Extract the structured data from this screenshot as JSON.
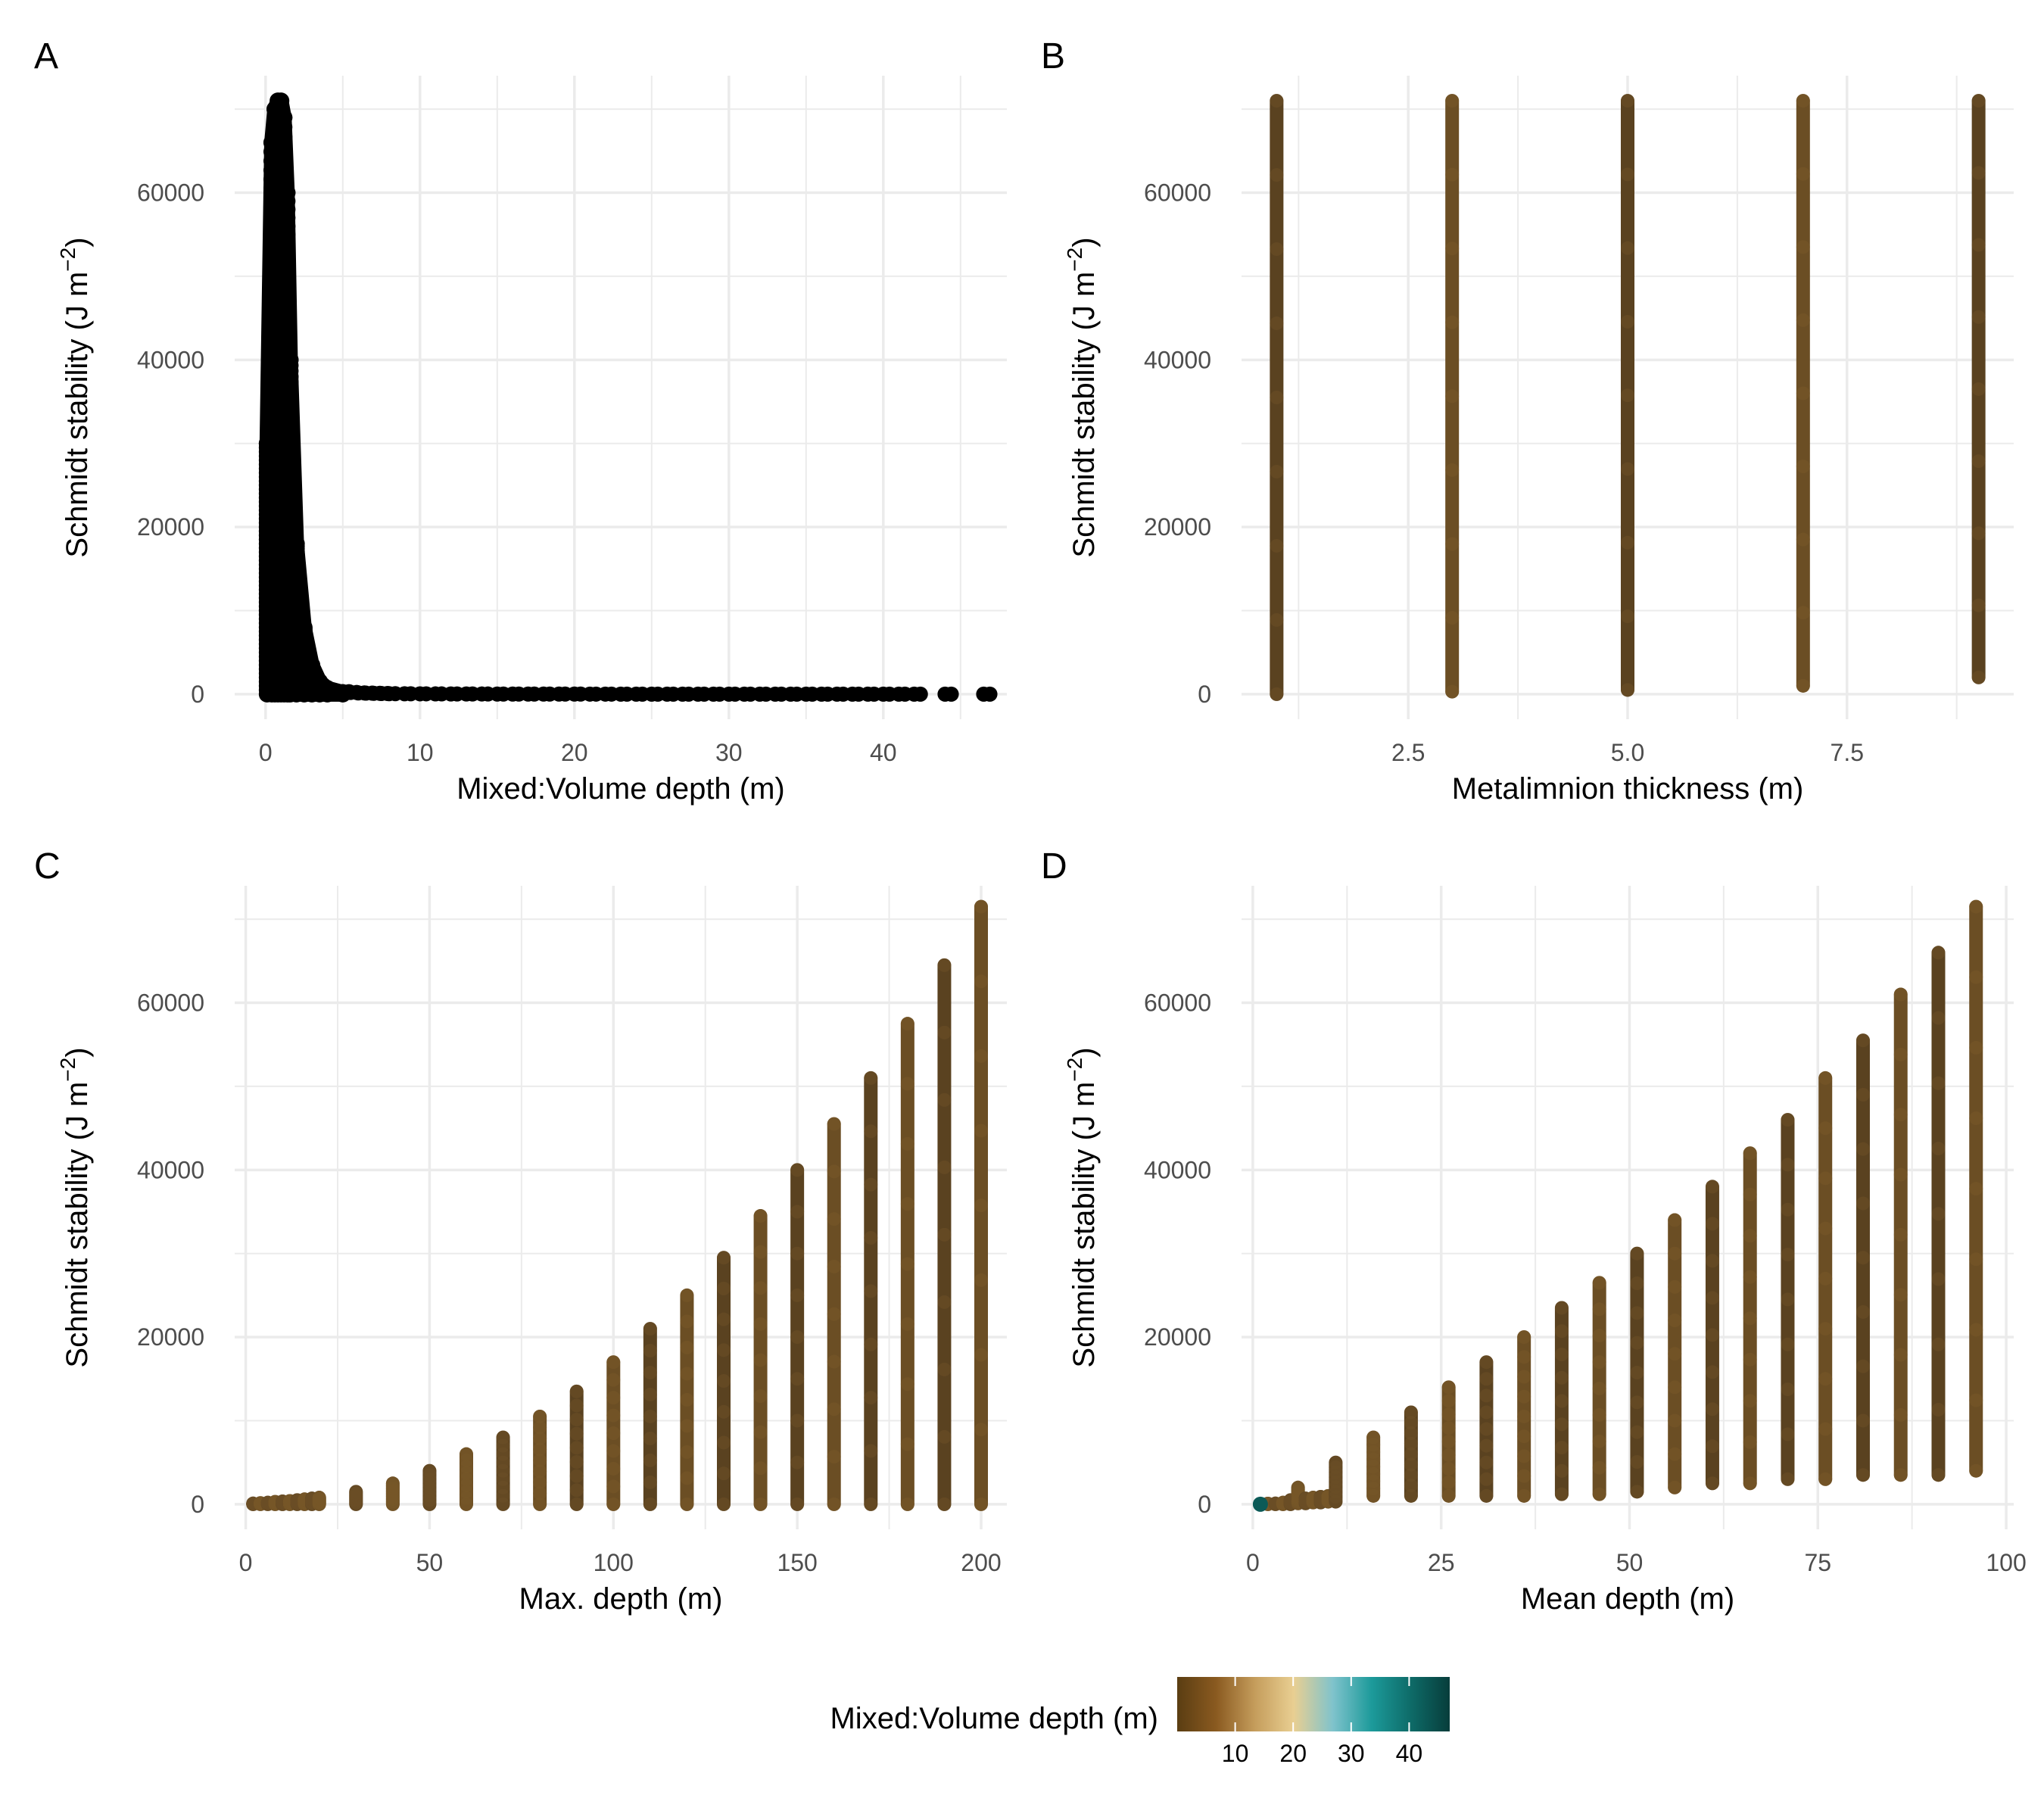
{
  "chart_data": [
    {
      "type": "scatter",
      "panel_label": "A",
      "xlabel": "Mixed:Volume depth (m)",
      "ylabel": "Schmidt stability (J m",
      "ylabel_sup": "−2",
      "ylabel_close": ")",
      "xlim": [
        -2,
        48
      ],
      "ylim": [
        -3000,
        74000
      ],
      "xticks": [
        0,
        10,
        20,
        30,
        40
      ],
      "xtick_labels": [
        "0",
        "10",
        "20",
        "30",
        "40"
      ],
      "yticks": [
        0,
        20000,
        40000,
        60000
      ],
      "ytick_labels": [
        "0",
        "20000",
        "40000",
        "60000"
      ],
      "grid": true,
      "point_color": "#000000",
      "series": [
        {
          "kind": "density_region",
          "x": [
            0.1,
            0.4,
            0.6,
            0.8,
            1.0,
            1.2,
            1.4,
            1.6,
            2.0,
            2.5,
            3.0,
            3.5,
            4.0,
            5.0
          ],
          "y_max": [
            30000,
            66000,
            70000,
            71000,
            71000,
            69000,
            60000,
            40000,
            18000,
            8000,
            3500,
            1500,
            700,
            200
          ]
        },
        {
          "kind": "tail_points",
          "x": [
            5,
            5.5,
            6,
            6.5,
            7,
            7.5,
            8,
            9,
            10,
            11,
            12,
            13,
            14,
            15,
            16,
            17,
            18,
            19,
            20,
            21,
            22,
            23,
            24,
            25,
            26,
            27,
            28,
            29,
            30,
            31,
            32,
            33,
            34,
            35,
            36,
            37,
            38,
            39,
            40,
            41,
            42,
            44,
            46.5
          ],
          "y": [
            300,
            200,
            150,
            120,
            100,
            80,
            60,
            50,
            40,
            30,
            25,
            20,
            18,
            15,
            12,
            10,
            10,
            8,
            8,
            6,
            6,
            5,
            5,
            4,
            4,
            3,
            3,
            3,
            2,
            2,
            2,
            2,
            1,
            1,
            1,
            1,
            1,
            1,
            1,
            1,
            1,
            1,
            1
          ]
        }
      ]
    },
    {
      "type": "scatter",
      "panel_label": "B",
      "xlabel": "Metalimnion thickness (m)",
      "ylabel": "Schmidt stability (J m",
      "ylabel_sup": "−2",
      "ylabel_close": ")",
      "xlim": [
        0.6,
        9.4
      ],
      "ylim": [
        -3000,
        74000
      ],
      "xticks": [
        2.5,
        5.0,
        7.5
      ],
      "xtick_labels": [
        "2.5",
        "5.0",
        "7.5"
      ],
      "yticks": [
        0,
        20000,
        40000,
        60000
      ],
      "ytick_labels": [
        "0",
        "20000",
        "40000",
        "60000"
      ],
      "grid": true,
      "series": [
        {
          "kind": "column",
          "x": [
            1,
            3,
            5,
            7,
            9
          ],
          "y_min": [
            0,
            300,
            500,
            1000,
            2000
          ],
          "y_max": [
            71000,
            71000,
            71000,
            71000,
            71000
          ]
        }
      ]
    },
    {
      "type": "scatter",
      "panel_label": "C",
      "xlabel": "Max. depth (m)",
      "ylabel": "Schmidt stability (J m",
      "ylabel_sup": "−2",
      "ylabel_close": ")",
      "xlim": [
        -3,
        207
      ],
      "ylim": [
        -3000,
        74000
      ],
      "xticks": [
        0,
        50,
        100,
        150,
        200
      ],
      "xtick_labels": [
        "0",
        "50",
        "100",
        "150",
        "200"
      ],
      "yticks": [
        0,
        20000,
        40000,
        60000
      ],
      "ytick_labels": [
        "0",
        "20000",
        "40000",
        "60000"
      ],
      "grid": true,
      "series": [
        {
          "kind": "column",
          "x": [
            2,
            4,
            6,
            8,
            10,
            12,
            14,
            16,
            18,
            20,
            30,
            40,
            50,
            60,
            70,
            80,
            90,
            100,
            110,
            120,
            130,
            140,
            150,
            160,
            170,
            180,
            190,
            200
          ],
          "y_min": [
            0,
            0,
            0,
            0,
            0,
            0,
            0,
            0,
            0,
            0,
            0,
            0,
            0,
            0,
            0,
            0,
            0,
            0,
            0,
            0,
            0,
            0,
            0,
            0,
            0,
            0,
            0,
            0
          ],
          "y_max": [
            100,
            150,
            200,
            300,
            350,
            400,
            500,
            600,
            700,
            800,
            1500,
            2500,
            4000,
            6000,
            8000,
            10500,
            13500,
            17000,
            21000,
            25000,
            29500,
            34500,
            40000,
            45500,
            51000,
            57500,
            64500,
            71500
          ]
        }
      ]
    },
    {
      "type": "scatter",
      "panel_label": "D",
      "xlabel": "Mean depth (m)",
      "ylabel": "Schmidt stability (J m",
      "ylabel_sup": "−2",
      "ylabel_close": ")",
      "xlim": [
        -1.5,
        101
      ],
      "ylim": [
        -3000,
        74000
      ],
      "xticks": [
        0,
        25,
        50,
        75,
        100
      ],
      "xtick_labels": [
        "0",
        "25",
        "50",
        "75",
        "100"
      ],
      "yticks": [
        0,
        20000,
        40000,
        60000
      ],
      "ytick_labels": [
        "0",
        "20000",
        "40000",
        "60000"
      ],
      "grid": true,
      "series": [
        {
          "kind": "column",
          "x": [
            1,
            2,
            3,
            4,
            5,
            6,
            7,
            8,
            9,
            10,
            11,
            16,
            21,
            26,
            31,
            36,
            41,
            46,
            51,
            56,
            61,
            66,
            71,
            76,
            81,
            86,
            91,
            96
          ],
          "y_min": [
            0,
            0,
            0,
            0,
            0,
            100,
            100,
            200,
            200,
            300,
            300,
            1000,
            1000,
            1000,
            1000,
            1000,
            1200,
            1200,
            1500,
            2000,
            2500,
            2500,
            3000,
            3000,
            3500,
            3500,
            3500,
            4000
          ],
          "y_max": [
            50,
            80,
            100,
            200,
            500,
            2000,
            700,
            800,
            900,
            1000,
            5000,
            8000,
            11000,
            14000,
            17000,
            20000,
            23500,
            26500,
            30000,
            34000,
            38000,
            42000,
            46000,
            51000,
            55500,
            61000,
            66000,
            71500
          ]
        },
        {
          "kind": "gaps_note",
          "text": ""
        }
      ]
    }
  ],
  "colors": {
    "point_dark": "#5a4220",
    "point_mid": "#6b4e24",
    "teal_point": "#0b5a57",
    "grid": "#ebebeb",
    "legend_stops": [
      "#5a3d12",
      "#8a5a20",
      "#c59d5c",
      "#e9cf92",
      "#7fc3cc",
      "#1c9a9a",
      "#0e6b68",
      "#073d3b"
    ]
  },
  "legend": {
    "title": "Mixed:Volume depth (m)",
    "ticks": [
      10,
      20,
      30,
      40
    ],
    "tick_labels": [
      "10",
      "20",
      "30",
      "40"
    ],
    "range": [
      0,
      47
    ]
  }
}
